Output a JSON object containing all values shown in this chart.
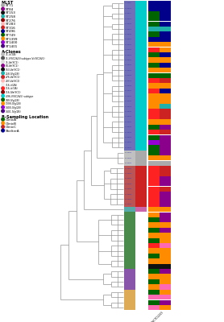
{
  "fig_width": 2.78,
  "fig_height": 4.0,
  "dpi": 100,
  "legend_MLST": {
    "title": "MLST",
    "entries": [
      {
        "label": "ST71",
        "color": "#aaaaaa"
      },
      {
        "label": "ST84",
        "color": "#8b008b"
      },
      {
        "label": "ST153",
        "color": "#111111"
      },
      {
        "label": "ST258",
        "color": "#20b2aa"
      },
      {
        "label": "ST276",
        "color": "#8b0000"
      },
      {
        "label": "ST283",
        "color": "#ffb6b6"
      },
      {
        "label": "ST316",
        "color": "#cc2222"
      },
      {
        "label": "ST496",
        "color": "#00008b"
      },
      {
        "label": "ST749",
        "color": "#006400"
      },
      {
        "label": "ST1399",
        "color": "#ff8c00"
      },
      {
        "label": "ST1400",
        "color": "#9400d3"
      },
      {
        "label": "ST1401",
        "color": "#4b0082"
      }
    ]
  },
  "legend_Aclones": {
    "title": "A-Clones",
    "entries": [
      {
        "label": "71-iii(3A)",
        "color": "#bbbbbb"
      },
      {
        "label": "71-V(SC2&5)(subtype-Vc(SC2&5)",
        "color": "#555555"
      },
      {
        "label": "71-Va(SC2)",
        "color": "#dddddd"
      },
      {
        "label": "84-Va(SC2)",
        "color": "#8b008b"
      },
      {
        "label": "153-Va(SC2)",
        "color": "#111111"
      },
      {
        "label": "258-IVg(2B)",
        "color": "#20b2aa"
      },
      {
        "label": "276-Va(SC2)",
        "color": "#cc2222"
      },
      {
        "label": "283-Va(SC2)",
        "color": "#ffb6b6"
      },
      {
        "label": "316-ii(2A)",
        "color": "#eeeeee"
      },
      {
        "label": "316-iii(3A)",
        "color": "#ff2222"
      },
      {
        "label": "316-IVa(SC2)",
        "color": "#8b0000"
      },
      {
        "label": "496-V(SC2&5) subtype",
        "color": "#00cccc"
      },
      {
        "label": "749-IVg(2B)",
        "color": "#006400"
      },
      {
        "label": "1399-IVg(2B)",
        "color": "#ff8c00"
      },
      {
        "label": "1400-IVg(2B)",
        "color": "#9400d3"
      },
      {
        "label": "1401-IVg(2B)",
        "color": "#4b0082"
      }
    ]
  },
  "legend_Sampling": {
    "title": "B-Sampling Location",
    "entries": [
      {
        "label": "ClinicA",
        "color": "#006400"
      },
      {
        "label": "ClinicB",
        "color": "#ff8c00"
      },
      {
        "label": "ClinicC",
        "color": "#cc2222"
      },
      {
        "label": "ShelterA",
        "color": "#00008b"
      }
    ]
  },
  "n_taxa": 60,
  "col1_blocks": [
    {
      "start": 0,
      "end": 28,
      "color": "#7070b8"
    },
    {
      "start": 29,
      "end": 31,
      "color": "#c0c0c0"
    },
    {
      "start": 32,
      "end": 39,
      "color": "#bb5555"
    },
    {
      "start": 40,
      "end": 40,
      "color": "#55aaaa"
    },
    {
      "start": 41,
      "end": 51,
      "color": "#4a8a4a"
    },
    {
      "start": 52,
      "end": 55,
      "color": "#8855aa"
    },
    {
      "start": 56,
      "end": 59,
      "color": "#ddaa55"
    }
  ],
  "col2_blocks": [
    {
      "start": 0,
      "end": 28,
      "color": "#00cccc"
    },
    {
      "start": 29,
      "end": 31,
      "color": "#aaaaaa"
    },
    {
      "start": 32,
      "end": 39,
      "color": "#cc2222"
    },
    {
      "start": 40,
      "end": 40,
      "color": "#cc66aa"
    },
    {
      "start": 41,
      "end": 59,
      "color": "#ffffff"
    }
  ],
  "col3_row_colors": [
    "#00008b",
    "#00008b",
    "#006400",
    "#006400",
    "#006400",
    "#20b2aa",
    "#006400",
    "#00008b",
    "#ff8c00",
    "#ff2222",
    "#006400",
    "#ff8c00",
    "#006400",
    "#ff8c00",
    "#006400",
    "#ff2222",
    "#ff8c00",
    "#ff2222",
    "#ff8c00",
    "#ff8c00",
    "#ff8c00",
    "#ff2222",
    "#ff2222",
    "#ff8c00",
    "#006400",
    "#ff2222",
    "#006400",
    "#9400d3",
    "#006400",
    "#006400",
    "#ff8c00",
    "#aaaaaa",
    "#ff2222",
    "#ff2222",
    "#ff2222",
    "#ff2222",
    "#ff2222",
    "#ff2222",
    "#ff2222",
    "#ff2222",
    "#ff8c00",
    "#ff8c00",
    "#006400",
    "#ff8c00",
    "#006400",
    "#ff8c00",
    "#006400",
    "#ff2222",
    "#ff8c00",
    "#006400",
    "#ff8c00",
    "#111111",
    "#006400",
    "#ff8c00",
    "#006400",
    "#ff8c00",
    "#006400",
    "#ff69b4",
    "#006400",
    "#ff69b4"
  ],
  "col4_row_colors": [
    "#00008b",
    "#00008b",
    "#00008b",
    "#00008b",
    "#00008b",
    "#20b2aa",
    "#00008b",
    "#00008b",
    "#ff8c00",
    "#ff8c00",
    "#00008b",
    "#ff8c00",
    "#00008b",
    "#ff8c00",
    "#006400",
    "#cc2222",
    "#ff8c00",
    "#00008b",
    "#ff8c00",
    "#ff8c00",
    "#20b2aa",
    "#cc2222",
    "#cc2222",
    "#ff8c00",
    "#8b008b",
    "#cc2222",
    "#8b008b",
    "#8b008b",
    "#8b008b",
    "#8b008b",
    "#ff8c00",
    "#aaaaaa",
    "#cc2222",
    "#cc2222",
    "#8b008b",
    "#8b008b",
    "#cc2222",
    "#8b008b",
    "#8b008b",
    "#8b008b",
    "#ff8c00",
    "#8b008b",
    "#8b008b",
    "#ff8c00",
    "#8b008b",
    "#ff8c00",
    "#ff8c00",
    "#ff69b4",
    "#ff8c00",
    "#ff8c00",
    "#ff8c00",
    "#111111",
    "#8b008b",
    "#ff8c00",
    "#ff8c00",
    "#ff69b4",
    "#ff8c00",
    "#ff69b4",
    "#8b008b",
    "#ff8c00"
  ],
  "bg_color": "#ffffff",
  "tree_color": "#888888",
  "x_label": "Sdeg6iiiNiCTC12225"
}
